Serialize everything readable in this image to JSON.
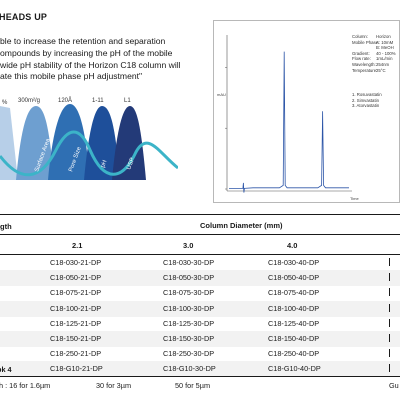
{
  "heading": "HEADS UP",
  "intro_lines": [
    "ble to increase the retention and separation",
    "ompounds by increasing the pH of the mobile",
    "wide pH stability of the Horizon C18 column will",
    "ate this mobile phase pH adjustment\""
  ],
  "waves": {
    "top_labels": [
      "%",
      "300m²/g",
      "120Å",
      "1-11",
      "L1"
    ],
    "curve_labels": [
      "Surface Area",
      "Pore Size",
      "pH",
      "USP"
    ],
    "colors": [
      "#b7cfe8",
      "#6e9fd0",
      "#2f6fb3",
      "#1e4f9a",
      "#233a78"
    ],
    "accent": "#3cb4c8"
  },
  "chromatogram": {
    "x_axis_title": "Time",
    "y_axis_title": "mAU",
    "specs": [
      {
        "key": "Column:",
        "value": "Horizon"
      },
      {
        "key": "Mobile Phase:",
        "value": "A: 10mM"
      },
      {
        "key": "",
        "value": "B: MeOH"
      },
      {
        "key": "Gradient:",
        "value": "40 - 100%"
      },
      {
        "key": "Flow rate:",
        "value": "1mL/min"
      },
      {
        "key": "Wavelength:",
        "value": "254nm"
      },
      {
        "key": "Temperature:",
        "value": "25°C"
      }
    ],
    "peaks": [
      "1. Rosuvastatin",
      "2. Simvastatin",
      "3. Atorvastatin"
    ],
    "line_color": "#2d56a8"
  },
  "chart_data": {
    "type": "line",
    "title": "",
    "xlabel": "Time",
    "ylabel": "",
    "xlim": [
      0,
      25
    ],
    "ylim": [
      0,
      250
    ],
    "grid": false,
    "series": [
      {
        "values_note": "",
        "x": [
          0,
          2.9,
          3.0,
          3.1,
          3.2,
          5.0,
          8.0,
          10.5,
          11.3,
          11.5,
          11.7,
          12.1,
          14.0,
          18.5,
          19.3,
          19.5,
          19.7,
          20.1,
          23.0,
          25.0
        ],
        "y": [
          1,
          1,
          10,
          -6,
          1,
          2,
          2,
          2,
          6,
          226,
          6,
          2,
          2,
          2,
          6,
          128,
          6,
          2,
          2,
          2
        ]
      }
    ]
  },
  "table": {
    "left_header": "gth",
    "main_header": "Column Diameter (mm)",
    "diameters": [
      "2.1",
      "3.0",
      "4.0"
    ],
    "rows": [
      [
        "C18-030-21-DP",
        "C18-030-30-DP",
        "C18-030-40-DP"
      ],
      [
        "C18-050-21-DP",
        "C18-050-30-DP",
        "C18-050-40-DP"
      ],
      [
        "C18-075-21-DP",
        "C18-075-30-DP",
        "C18-075-40-DP"
      ],
      [
        "C18-100-21-DP",
        "C18-100-30-DP",
        "C18-100-40-DP"
      ],
      [
        "C18-125-21-DP",
        "C18-125-30-DP",
        "C18-125-40-DP"
      ],
      [
        "C18-150-21-DP",
        "C18-150-30-DP",
        "C18-150-40-DP"
      ],
      [
        "C18-250-21-DP",
        "C18-250-30-DP",
        "C18-250-40-DP"
      ],
      [
        "C18-G10-21-DP",
        "C18-G10-30-DP",
        "C18-G10-40-DP"
      ]
    ],
    "last_row_label": "pk 4",
    "footer": {
      "lead": "h : 16 for 1.6µm",
      "col2": "30 for 3µm",
      "col3": "50 for 5µm",
      "right": "Gu"
    }
  }
}
